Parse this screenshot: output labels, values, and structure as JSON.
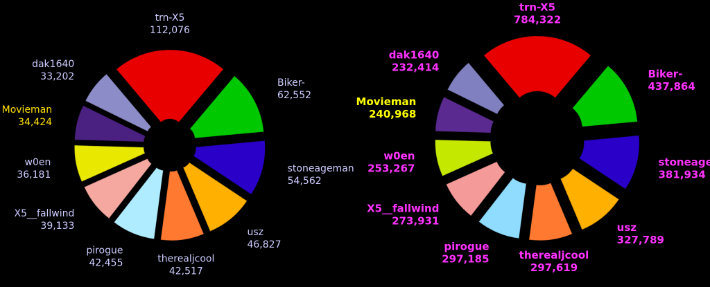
{
  "chart_data": [
    {
      "type": "pie",
      "categories": [
        "trn-X5",
        "Biker-",
        "stoneageman",
        "usz",
        "therealjcool",
        "pirogue",
        "X5__fallwind",
        "w0en",
        "Movieman",
        "dak1640"
      ],
      "values": [
        112076,
        62552,
        54562,
        46827,
        42517,
        42455,
        39133,
        36181,
        34424,
        33202
      ],
      "value_labels": [
        "112,076",
        "62,552",
        "54,562",
        "46,827",
        "42,517",
        "42,455",
        "39,133",
        "36,181",
        "34,424",
        "33,202"
      ],
      "colors": [
        "#e80000",
        "#00c800",
        "#2a00c8",
        "#ffb000",
        "#ff7a30",
        "#b0ecff",
        "#f4a8a0",
        "#e8e800",
        "#4a2080",
        "#8c8cc8"
      ],
      "label_colors": [
        "#ccccff",
        "#ccccff",
        "#ccccff",
        "#ccccff",
        "#ccccff",
        "#ccccff",
        "#ccccff",
        "#ccccff",
        "#ffe000",
        "#ccccff"
      ]
    },
    {
      "type": "pie",
      "categories": [
        "trn-X5",
        "Biker-",
        "stoneageman",
        "usz",
        "therealjcool",
        "pirogue",
        "X5__fallwind",
        "w0en",
        "Movieman",
        "dak1640"
      ],
      "values": [
        784322,
        437864,
        381934,
        327789,
        297619,
        297185,
        273931,
        253267,
        240968,
        232414
      ],
      "value_labels": [
        "784,322",
        "437,864",
        "381,934",
        "327,789",
        "297,619",
        "297,185",
        "273,931",
        "253,267",
        "240,968",
        "232,414"
      ],
      "colors": [
        "#e80000",
        "#00c800",
        "#2a00c8",
        "#ffb000",
        "#ff7a30",
        "#90dcff",
        "#f49a98",
        "#c4e800",
        "#5a2a90",
        "#8080c0"
      ],
      "label_colors": [
        "#ff33ff",
        "#ff33ff",
        "#ff33ff",
        "#ff33ff",
        "#ff33ff",
        "#ff33ff",
        "#ff33ff",
        "#ff33ff",
        "#ffff00",
        "#ff33ff"
      ]
    }
  ]
}
